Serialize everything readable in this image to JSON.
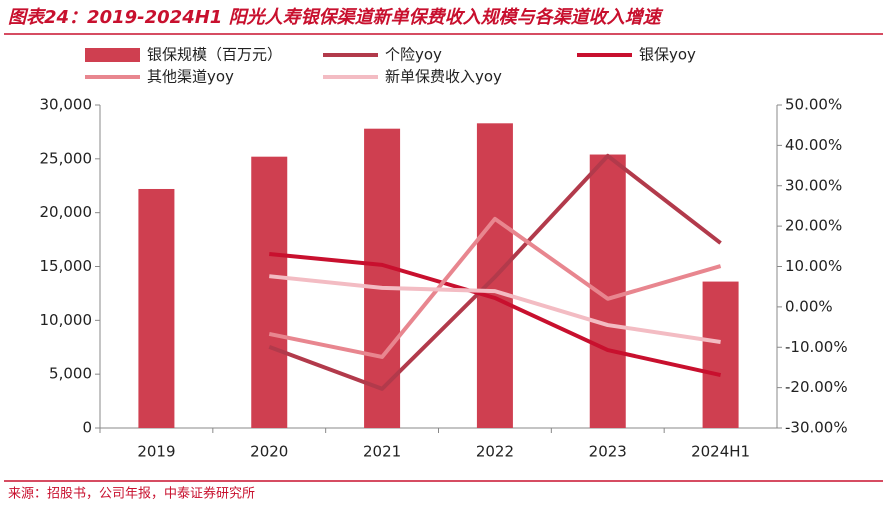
{
  "chart_data": {
    "type": "bar-line",
    "title": "图表24：2019-2024H1 阳光人寿银保渠道新单保费收入规模与各渠道收入增速",
    "source": "来源：招股书，公司年报，中泰证券研究所",
    "categories": [
      "2019",
      "2020",
      "2021",
      "2022",
      "2023",
      "2024H1"
    ],
    "series": [
      {
        "name": "银保规模（百万元）",
        "type": "bar",
        "color": "#cf3f50",
        "values": [
          22200,
          25200,
          27800,
          28300,
          25400,
          13600
        ]
      },
      {
        "name": "个险yoy",
        "type": "line",
        "axis": "y2",
        "color": "#b23a4b",
        "values": [
          null,
          -9.9,
          -20.3,
          7.4,
          37.4,
          15.8
        ]
      },
      {
        "name": "银保yoy",
        "type": "line",
        "axis": "y2",
        "color": "#c8102e",
        "values": [
          null,
          13.1,
          10.4,
          2.2,
          -10.7,
          -16.9
        ]
      },
      {
        "name": "其他渠道yoy",
        "type": "line",
        "axis": "y2",
        "color": "#e8868f",
        "values": [
          null,
          -6.7,
          -12.4,
          21.8,
          2.0,
          10.1
        ]
      },
      {
        "name": "新单保费收入yoy",
        "type": "line",
        "axis": "y2",
        "color": "#f3bcc3",
        "values": [
          null,
          7.6,
          4.7,
          3.9,
          -4.5,
          -8.7
        ]
      }
    ],
    "ylim": [
      0,
      30000
    ],
    "yticks": [
      0,
      {
        "value": 5000,
        "label": "5,000"
      },
      {
        "value": 10000,
        "label": "10,000"
      },
      {
        "value": 15000,
        "label": "15,000"
      },
      {
        "value": 20000,
        "label": "20,000"
      },
      {
        "value": 25000,
        "label": "25,000"
      },
      {
        "value": 30000,
        "label": "30,000"
      }
    ],
    "y2lim": [
      -30,
      50
    ],
    "y2ticks": [
      {
        "value": -30,
        "label": "-30.00%"
      },
      {
        "value": -20,
        "label": "-20.00%"
      },
      {
        "value": -10,
        "label": "-10.00%"
      },
      {
        "value": 0,
        "label": "0.00%"
      },
      {
        "value": 10,
        "label": "10.00%"
      },
      {
        "value": 20,
        "label": "20.00%"
      },
      {
        "value": 30,
        "label": "30.00%"
      },
      {
        "value": 40,
        "label": "40.00%"
      },
      {
        "value": 50,
        "label": "50.00%"
      }
    ]
  }
}
